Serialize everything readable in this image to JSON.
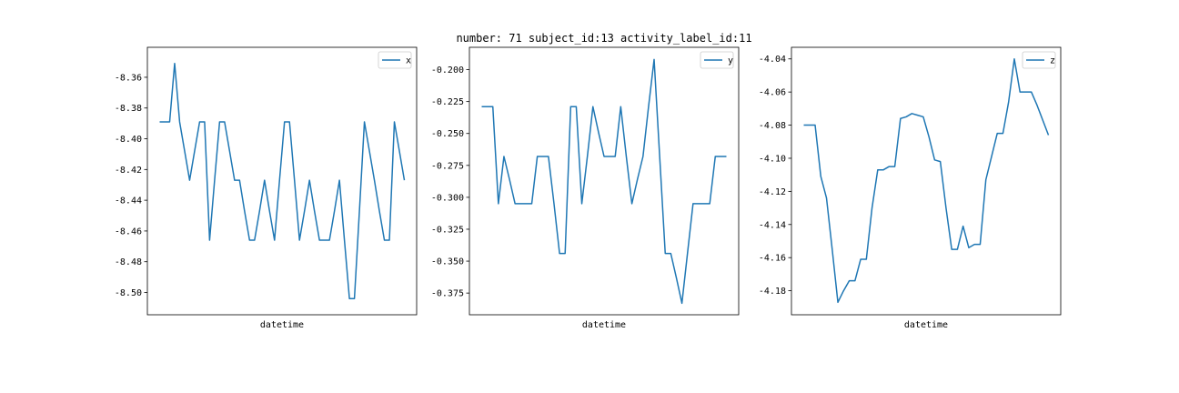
{
  "title": "number: 71 subject_id:13 activity_label_id:11",
  "colors": {
    "line": "#1f77b4",
    "frame": "#000000",
    "legend_border": "#cccccc"
  },
  "chart_data": [
    {
      "type": "line",
      "xlabel": "datetime",
      "legend": "top-right",
      "grid": false,
      "series": [
        {
          "name": "x",
          "values": [
            -8.389,
            -8.389,
            -8.389,
            -8.351,
            -8.389,
            -8.408,
            -8.427,
            -8.408,
            -8.389,
            -8.389,
            -8.466,
            -8.427,
            -8.389,
            -8.389,
            -8.408,
            -8.427,
            -8.427,
            -8.447,
            -8.466,
            -8.466,
            -8.447,
            -8.427,
            -8.447,
            -8.466,
            -8.427,
            -8.389,
            -8.389,
            -8.427,
            -8.466,
            -8.447,
            -8.427,
            -8.447,
            -8.466,
            -8.466,
            -8.466,
            -8.447,
            -8.427,
            -8.466,
            -8.504,
            -8.504,
            -8.447,
            -8.389,
            -8.408,
            -8.427,
            -8.447,
            -8.466,
            -8.466,
            -8.389,
            -8.408,
            -8.427
          ]
        }
      ],
      "yticks": [
        "-8.36",
        "-8.38",
        "-8.40",
        "-8.42",
        "-8.44",
        "-8.46",
        "-8.48",
        "-8.50"
      ],
      "ylim": [
        -8.5145,
        -8.3405
      ]
    },
    {
      "type": "line",
      "xlabel": "datetime",
      "legend": "top-right",
      "grid": false,
      "series": [
        {
          "name": "y",
          "values": [
            -0.229,
            -0.229,
            -0.229,
            -0.305,
            -0.268,
            -0.286,
            -0.305,
            -0.305,
            -0.305,
            -0.305,
            -0.268,
            -0.268,
            -0.268,
            -0.305,
            -0.344,
            -0.344,
            -0.229,
            -0.229,
            -0.305,
            -0.268,
            -0.229,
            -0.249,
            -0.268,
            -0.268,
            -0.268,
            -0.229,
            -0.268,
            -0.305,
            -0.286,
            -0.268,
            -0.229,
            -0.192,
            -0.268,
            -0.344,
            -0.344,
            -0.363,
            -0.383,
            -0.344,
            -0.305,
            -0.305,
            -0.305,
            -0.305,
            -0.268,
            -0.268,
            -0.268
          ]
        }
      ],
      "yticks": [
        "-0.200",
        "-0.225",
        "-0.250",
        "-0.275",
        "-0.300",
        "-0.325",
        "-0.350",
        "-0.375"
      ],
      "ylim": [
        -0.392,
        -0.1825
      ]
    },
    {
      "type": "line",
      "xlabel": "datetime",
      "legend": "top-right",
      "grid": false,
      "series": [
        {
          "name": "z",
          "values": [
            -4.08,
            -4.08,
            -4.08,
            -4.111,
            -4.124,
            -4.155,
            -4.187,
            -4.18,
            -4.174,
            -4.174,
            -4.161,
            -4.161,
            -4.13,
            -4.107,
            -4.107,
            -4.105,
            -4.105,
            -4.076,
            -4.075,
            -4.073,
            -4.074,
            -4.075,
            -4.087,
            -4.101,
            -4.102,
            -4.13,
            -4.155,
            -4.155,
            -4.141,
            -4.154,
            -4.152,
            -4.152,
            -4.113,
            -4.099,
            -4.085,
            -4.085,
            -4.066,
            -4.04,
            -4.06,
            -4.06,
            -4.06,
            -4.068,
            -4.077,
            -4.086
          ]
        }
      ],
      "yticks": [
        "-4.04",
        "-4.06",
        "-4.08",
        "-4.10",
        "-4.12",
        "-4.14",
        "-4.16",
        "-4.18"
      ],
      "ylim": [
        -4.1945,
        -4.033
      ]
    }
  ]
}
